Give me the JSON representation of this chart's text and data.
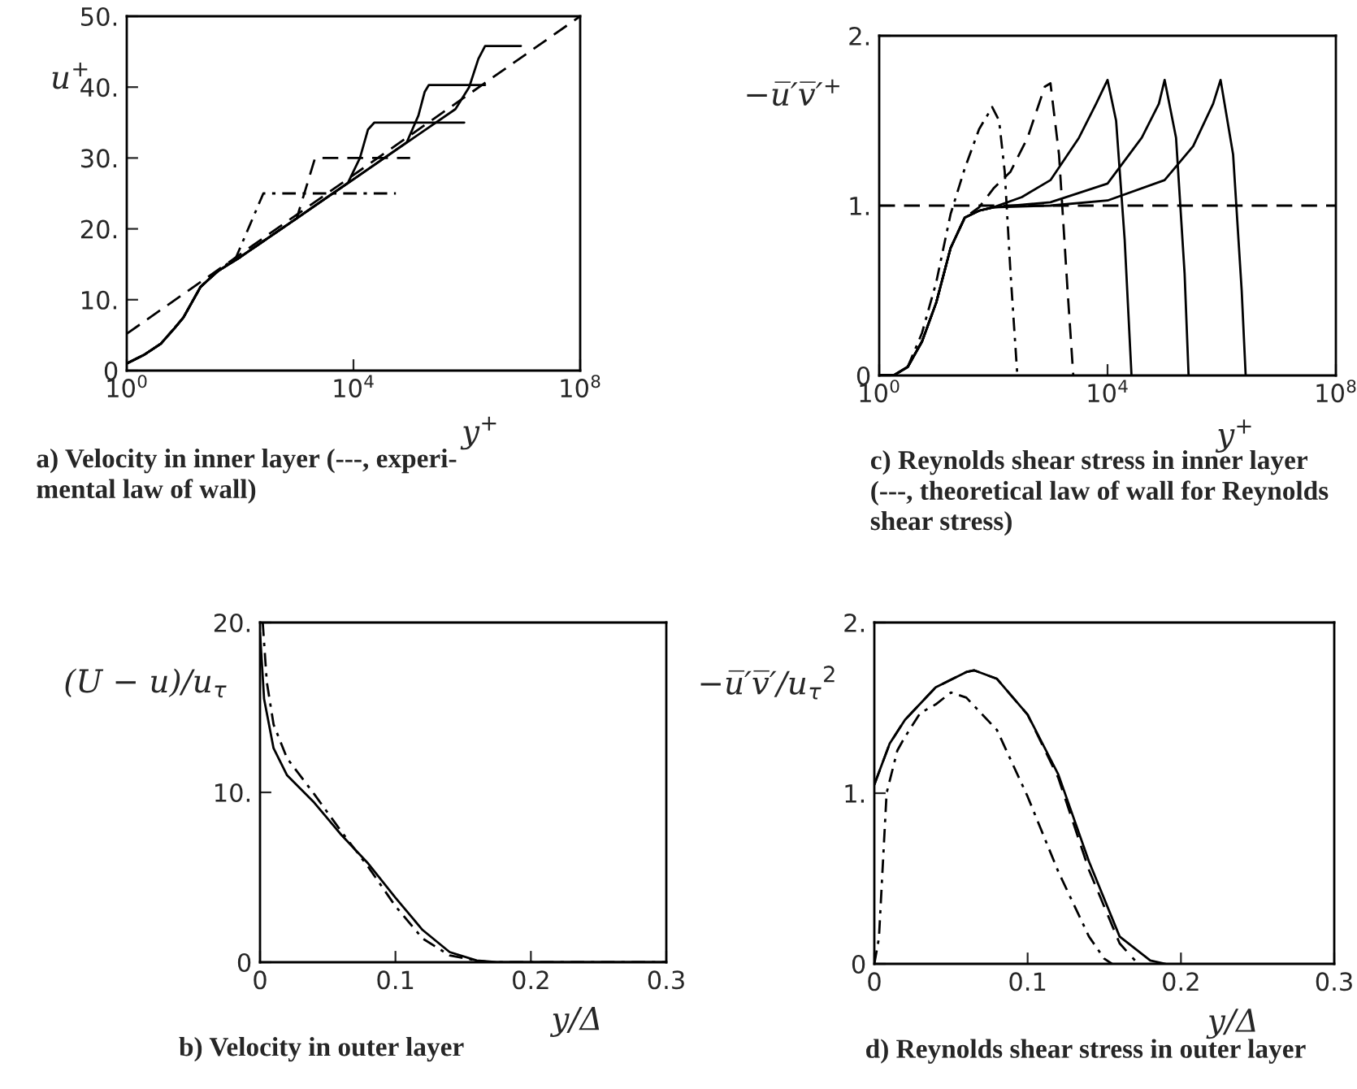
{
  "chart_data": [
    {
      "type": "line",
      "title": "a) Velocity in inner layer (---, experi-\nmental law of wall)",
      "xlabel": "y$^{+}$",
      "ylabel": "u$^{+}$",
      "log": "x",
      "xlim": [
        1,
        100000000
      ],
      "xticks": [
        {
          "value": 1,
          "label": "10$^{0}$"
        },
        {
          "value": 10000,
          "label": "10$^{4}$"
        },
        {
          "value": 100000000,
          "label": "10$^{8}$"
        }
      ],
      "ylim": [
        0,
        50
      ],
      "yticks": [
        0,
        {
          "value": 10,
          "label": "10."
        },
        {
          "value": 20,
          "label": "20."
        },
        {
          "value": 30,
          "label": "30."
        },
        {
          "value": 40,
          "label": "40."
        },
        {
          "value": 50,
          "label": "50."
        }
      ],
      "series": [
        {
          "color": "#000000",
          "line_style": "dashed",
          "x": [
            1,
            100000000
          ],
          "values": [
            5.2,
            50
          ]
        },
        {
          "color": "#000000",
          "line_style": "dashdot",
          "x": [
            1,
            2,
            4,
            7,
            10,
            20,
            40,
            85,
            257,
            56000
          ],
          "values": [
            1,
            2.2,
            3.8,
            6,
            7.5,
            11.8,
            14,
            16,
            25,
            25
          ]
        },
        {
          "color": "#000000",
          "line_style": "dashed",
          "x": [
            1,
            2,
            4,
            7,
            10,
            20,
            40,
            100,
            1000,
            2100,
            100000
          ],
          "values": [
            1,
            2.2,
            3.8,
            6,
            7.5,
            11.8,
            14,
            16,
            21.5,
            30,
            30
          ]
        },
        {
          "color": "#000000",
          "line_style": "solid",
          "x": [
            1,
            2,
            4,
            7,
            10,
            20,
            40,
            100,
            1000,
            8000,
            13000,
            18000,
            23400,
            900000
          ],
          "values": [
            1,
            2.2,
            3.8,
            6,
            7.5,
            11.8,
            14,
            16,
            21.5,
            26.5,
            30,
            34,
            35,
            35
          ]
        },
        {
          "color": "#000000",
          "line_style": "solid",
          "x": [
            1,
            2,
            4,
            7,
            10,
            20,
            40,
            100,
            1000,
            10000,
            87000,
            140000,
            180000,
            214000,
            2100000
          ],
          "values": [
            1,
            2.2,
            3.8,
            6,
            7.5,
            11.8,
            14,
            16,
            21.5,
            27,
            32.2,
            36,
            39.3,
            40.3,
            40.3
          ]
        },
        {
          "color": "#000000",
          "line_style": "solid",
          "x": [
            1,
            2,
            4,
            7,
            10,
            20,
            40,
            100,
            1000,
            10000,
            100000,
            630000,
            1100000,
            1600000,
            2100000,
            9000000
          ],
          "values": [
            1,
            2.2,
            3.8,
            6,
            7.5,
            11.8,
            14,
            16,
            21.5,
            27,
            32.5,
            36.9,
            40,
            44,
            45.8,
            45.8
          ]
        }
      ]
    },
    {
      "type": "line",
      "title": "c) Reynolds shear stress in inner layer\n(---, theoretical law of wall for Reynolds\nshear stress)",
      "xlabel": "y$^{+}$",
      "ylabel": "−u̅′v̅′$^{+}$",
      "log": "x",
      "xlim": [
        1,
        100000000
      ],
      "xticks": [
        {
          "value": 1,
          "label": "10$^{0}$"
        },
        {
          "value": 10000,
          "label": "10$^{4}$"
        },
        {
          "value": 100000000,
          "label": "10$^{8}$"
        }
      ],
      "ylim": [
        0,
        2
      ],
      "yticks": [
        0,
        {
          "value": 1,
          "label": "1."
        },
        {
          "value": 2,
          "label": "2."
        }
      ],
      "ref_lines": [
        {
          "axis": "y",
          "value": 1,
          "color": "#000000",
          "line_style": "dashed"
        }
      ],
      "series": [
        {
          "color": "#000000",
          "line_style": "dashdot",
          "x": [
            1,
            1.78,
            3.16,
            5.62,
            10,
            17.8,
            31.6,
            56.2,
            95.5,
            126,
            158,
            200,
            263
          ],
          "values": [
            0,
            0,
            0.05,
            0.25,
            0.55,
            0.95,
            1.22,
            1.45,
            1.58,
            1.5,
            1.2,
            0.6,
            0
          ]
        },
        {
          "color": "#000000",
          "line_style": "dashed",
          "x": [
            1,
            1.78,
            3.16,
            5.62,
            10,
            17.8,
            31.6,
            56.2,
            100,
            200,
            398,
            794,
            1000,
            1413,
            1995,
            2512
          ],
          "values": [
            0,
            0,
            0.05,
            0.2,
            0.43,
            0.75,
            0.93,
            0.99,
            1.1,
            1.2,
            1.4,
            1.7,
            1.72,
            1.3,
            0.5,
            0
          ]
        },
        {
          "color": "#000000",
          "line_style": "solid",
          "x": [
            1,
            1.78,
            3.16,
            5.62,
            10,
            17.8,
            31.6,
            56.2,
            100,
            316,
            1000,
            3162,
            6310,
            10000,
            14125,
            19953,
            26303
          ],
          "values": [
            0,
            0,
            0.05,
            0.2,
            0.43,
            0.75,
            0.93,
            0.97,
            0.99,
            1.05,
            1.15,
            1.4,
            1.6,
            1.74,
            1.5,
            0.8,
            0
          ]
        },
        {
          "color": "#000000",
          "line_style": "solid",
          "x": [
            1,
            1.78,
            3.16,
            5.62,
            10,
            17.8,
            31.6,
            56.2,
            100,
            1000,
            10000,
            39811,
            79433,
            100000,
            158489,
            223872,
            263027
          ],
          "values": [
            0,
            0,
            0.05,
            0.2,
            0.43,
            0.75,
            0.93,
            0.97,
            0.99,
            1.02,
            1.13,
            1.4,
            1.6,
            1.74,
            1.4,
            0.6,
            0
          ]
        },
        {
          "color": "#000000",
          "line_style": "solid",
          "x": [
            1,
            1.78,
            3.16,
            5.62,
            10,
            17.8,
            31.6,
            56.2,
            100,
            1000,
            10000,
            100000,
            316228,
            707946,
            954993,
            1584893,
            2238721,
            2630268
          ],
          "values": [
            0,
            0,
            0.05,
            0.2,
            0.43,
            0.75,
            0.93,
            0.97,
            0.99,
            1.0,
            1.03,
            1.15,
            1.35,
            1.6,
            1.74,
            1.3,
            0.5,
            0
          ]
        }
      ]
    },
    {
      "type": "line",
      "title": "b) Velocity in outer layer",
      "xlabel": "y/Δ",
      "ylabel": "(U − u)/u$_{τ}$",
      "xlim": [
        0,
        0.3
      ],
      "xticks": [
        0,
        0.1,
        0.2,
        0.3
      ],
      "ylim": [
        0,
        20
      ],
      "yticks": [
        0,
        {
          "value": 10,
          "label": "10."
        },
        {
          "value": 20,
          "label": "20."
        }
      ],
      "series": [
        {
          "color": "#000000",
          "line_style": "solid",
          "x": [
            0,
            0.003,
            0.01,
            0.02,
            0.04,
            0.06,
            0.08,
            0.1,
            0.12,
            0.14,
            0.16,
            0.175,
            0.3
          ],
          "values": [
            19.4,
            15.5,
            12.6,
            11.0,
            9.4,
            7.5,
            5.8,
            3.8,
            1.9,
            0.6,
            0.1,
            0,
            0
          ]
        },
        {
          "color": "#000000",
          "line_style": "dashdot",
          "x": [
            0.002,
            0.005,
            0.01,
            0.02,
            0.04,
            0.06,
            0.08,
            0.1,
            0.12,
            0.14,
            0.16,
            0.17,
            0.3
          ],
          "values": [
            20,
            16.5,
            14,
            12,
            9.9,
            7.7,
            5.6,
            3.3,
            1.4,
            0.4,
            0.1,
            0,
            0
          ]
        }
      ]
    },
    {
      "type": "line",
      "title": "d) Reynolds shear stress in outer layer",
      "xlabel": "y/Δ",
      "ylabel": "−u̅′v̅′/u$_{τ}$$^{2}$",
      "xlim": [
        0,
        0.3
      ],
      "xticks": [
        0,
        0.1,
        0.2,
        0.3
      ],
      "ylim": [
        0,
        2
      ],
      "yticks": [
        0,
        {
          "value": 1,
          "label": "1."
        },
        {
          "value": 2,
          "label": "2."
        }
      ],
      "series": [
        {
          "color": "#000000",
          "line_style": "solid",
          "x": [
            0,
            0.01,
            0.02,
            0.04,
            0.06,
            0.065,
            0.08,
            0.1,
            0.12,
            0.14,
            0.16,
            0.18,
            0.19
          ],
          "values": [
            1.05,
            1.29,
            1.43,
            1.62,
            1.71,
            1.72,
            1.67,
            1.46,
            1.11,
            0.6,
            0.16,
            0.02,
            0
          ]
        },
        {
          "color": "#000000",
          "line_style": "dashed",
          "x": [
            0,
            0.01,
            0.02,
            0.04,
            0.06,
            0.065,
            0.08,
            0.1,
            0.12,
            0.14,
            0.16,
            0.17
          ],
          "values": [
            1.05,
            1.29,
            1.43,
            1.62,
            1.71,
            1.72,
            1.67,
            1.46,
            1.09,
            0.55,
            0.12,
            0.02
          ]
        },
        {
          "color": "#000000",
          "line_style": "dashdot",
          "x": [
            0,
            0.003,
            0.008,
            0.015,
            0.02,
            0.03,
            0.04,
            0.05,
            0.06,
            0.08,
            0.1,
            0.12,
            0.14,
            0.15,
            0.155
          ],
          "values": [
            0,
            0.15,
            1.0,
            1.25,
            1.33,
            1.47,
            1.52,
            1.59,
            1.56,
            1.37,
            0.98,
            0.54,
            0.16,
            0.03,
            0
          ]
        }
      ]
    }
  ]
}
